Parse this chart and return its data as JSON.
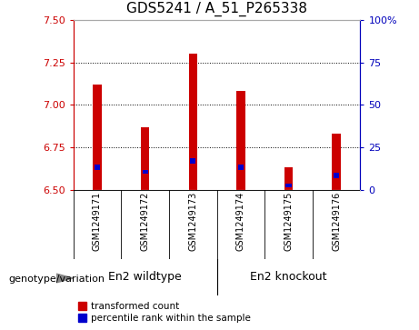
{
  "title": "GDS5241 / A_51_P265338",
  "samples": [
    "GSM1249171",
    "GSM1249172",
    "GSM1249173",
    "GSM1249174",
    "GSM1249175",
    "GSM1249176"
  ],
  "groups": [
    "En2 wildtype",
    "En2 knockout"
  ],
  "ylim_left": [
    6.5,
    7.5
  ],
  "ylim_right": [
    0,
    100
  ],
  "yticks_left": [
    6.5,
    6.75,
    7.0,
    7.25,
    7.5
  ],
  "yticks_right": [
    0,
    25,
    50,
    75,
    100
  ],
  "bar_base": 6.5,
  "red_tops": [
    7.12,
    6.87,
    7.3,
    7.08,
    6.63,
    6.83
  ],
  "blue_bottoms": [
    6.615,
    6.593,
    6.655,
    6.618,
    6.513,
    6.57
  ],
  "blue_tops": [
    6.65,
    6.618,
    6.685,
    6.648,
    6.535,
    6.598
  ],
  "red_color": "#cc0000",
  "blue_color": "#0000cc",
  "bar_width": 0.18,
  "bg_plot": "#ffffff",
  "bg_group": "#66dd66",
  "bg_tick_area": "#cccccc",
  "legend_items": [
    "transformed count",
    "percentile rank within the sample"
  ],
  "legend_colors": [
    "#cc0000",
    "#0000cc"
  ],
  "left_tick_color": "#cc0000",
  "right_tick_color": "#0000bb",
  "group_label_text": "genotype/variation",
  "title_fontsize": 11,
  "tick_fontsize": 8,
  "sample_fontsize": 7,
  "group_fontsize": 9,
  "legend_fontsize": 7.5
}
